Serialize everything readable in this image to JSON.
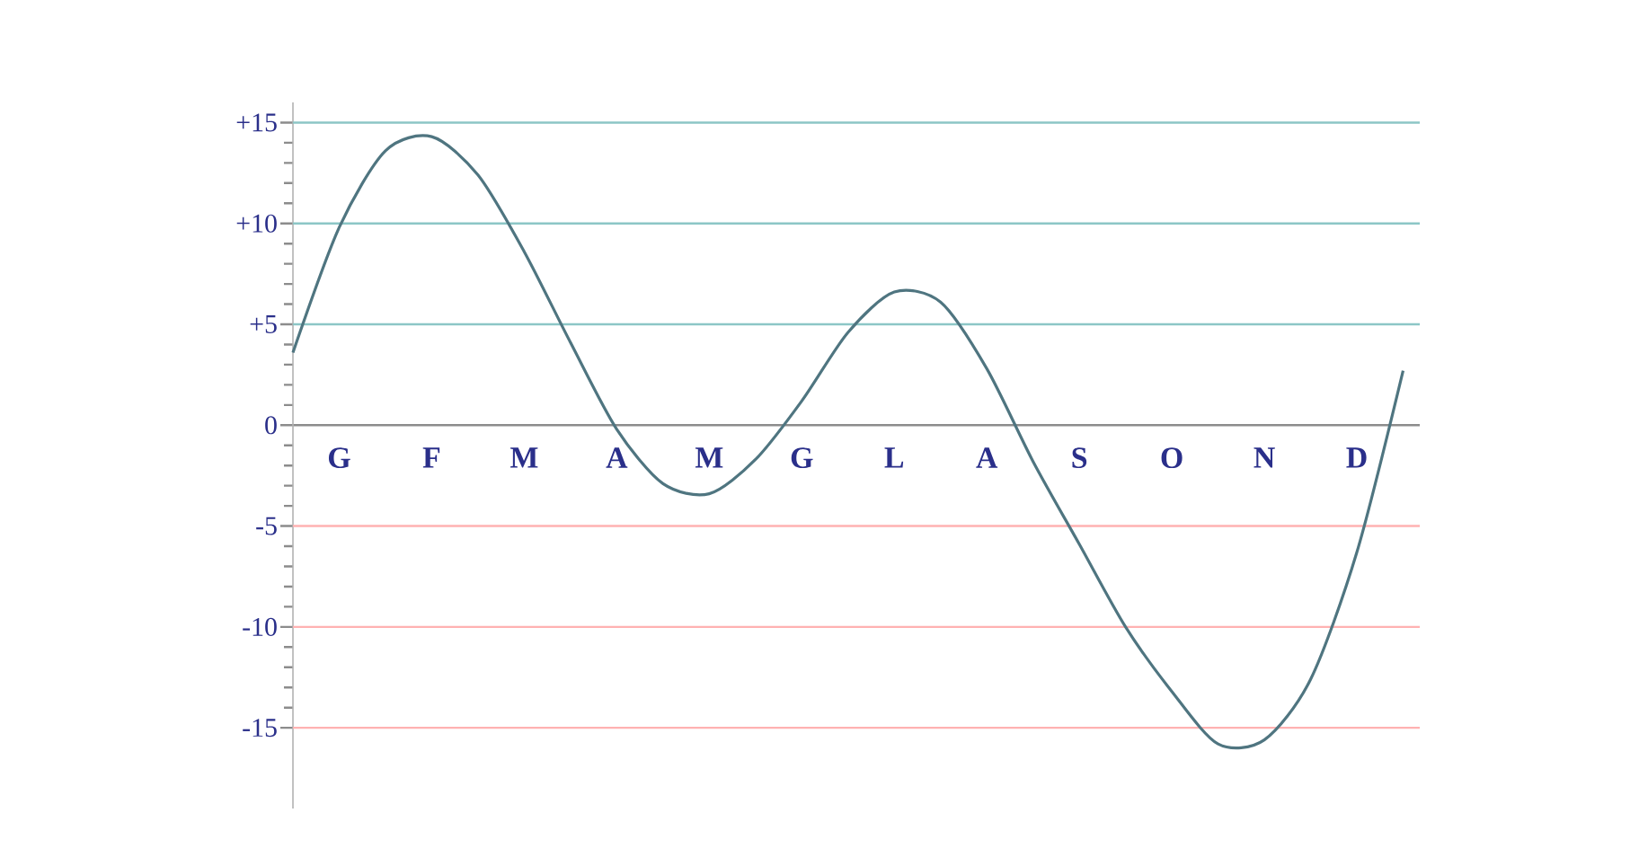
{
  "chart_data": {
    "type": "line",
    "categories": [
      null,
      "G",
      null,
      "F",
      null,
      "M",
      null,
      "A",
      null,
      "M",
      null,
      "G",
      null,
      "L",
      null,
      "A",
      null,
      "S",
      null,
      "O",
      null,
      "N",
      null,
      "D",
      null
    ],
    "series": [
      {
        "color": "#4f7580",
        "values": [
          3.6,
          9.8,
          13.6,
          14.3,
          12.4,
          8.6,
          4.1,
          -0.2,
          -2.9,
          -3.4,
          -1.7,
          1.2,
          4.6,
          6.6,
          6.1,
          2.8,
          -1.8,
          -5.9,
          -10.0,
          -13.2,
          -15.8,
          -15.6,
          -12.6,
          -6.3,
          2.7
        ]
      }
    ],
    "ylim": [
      -19,
      16
    ],
    "yticks": [
      {
        "value": 15,
        "label": "+15"
      },
      {
        "value": 10,
        "label": "+10"
      },
      {
        "value": 5,
        "label": "+5"
      },
      0,
      -5,
      -10,
      -15
    ],
    "grid": "y",
    "marker": "none",
    "line_style": "solid"
  }
}
